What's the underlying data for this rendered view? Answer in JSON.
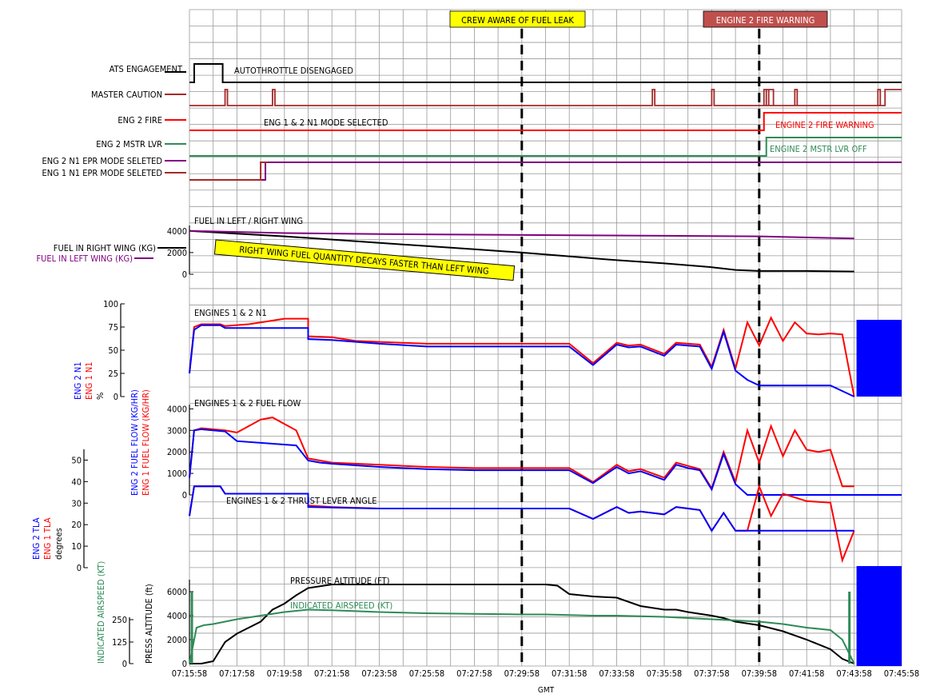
{
  "chart_data": {
    "type": "line",
    "xlabel": "GMT",
    "x_ticks": [
      "07:15:58",
      "07:17:58",
      "07:19:58",
      "07:21:58",
      "07:23:58",
      "07:25:58",
      "07:27:58",
      "07:29:58",
      "07:31:58",
      "07:33:58",
      "07:35:58",
      "07:37:58",
      "07:39:58",
      "07:41:58",
      "07:43:58",
      "07:45:58"
    ],
    "events": [
      {
        "time": "07:29:58",
        "label": "CREW AWARE OF FUEL LEAK",
        "label_color": "#ffff00",
        "text_color": "#000000"
      },
      {
        "time": "07:39:58",
        "label": "ENGINE 2 FIRE WARNING",
        "label_color": "#c0504d",
        "text_color": "#ffffff"
      }
    ],
    "discretes": {
      "labels": [
        {
          "name": "ATS ENGAGEMENT",
          "color": "#000000"
        },
        {
          "name": "MASTER CAUTION",
          "color": "#a52a2a"
        },
        {
          "name": "ENG 2 FIRE",
          "color": "#ff0000"
        },
        {
          "name": "ENG 2 MSTR LVR",
          "color": "#2e8b57"
        },
        {
          "name": "ENG 2 N1 EPR MODE SELETED",
          "color": "#800080"
        },
        {
          "name": "ENG 1 N1 EPR MODE SELETED",
          "color": "#a52a2a"
        }
      ],
      "annotations": {
        "ats": "AUTOTHROTTLE DISENGAGED",
        "n1mode": "ENG 1 & 2 N1 MODE SELECTED",
        "fire": "ENGINE 2 FIRE WARNING",
        "mstr": "ENGINE 2 MSTR LVR OFF"
      }
    },
    "fuel_wing": {
      "title": "FUEL IN LEFT / RIGHT WING",
      "yticks": [
        0,
        2000,
        4000
      ],
      "ylim": [
        0,
        4500
      ],
      "annotation": "RIGHT WING FUEL QUANTITY DECAYS FASTER THAN LEFT WING",
      "series": [
        {
          "name": "FUEL IN RIGHT WING (KG)",
          "color": "#000000",
          "t": [
            0,
            2,
            4,
            6,
            8,
            10,
            12,
            14,
            16,
            18,
            20,
            22,
            23,
            24,
            26,
            28
          ],
          "v": [
            4000,
            3750,
            3500,
            3200,
            2900,
            2600,
            2300,
            2000,
            1650,
            1300,
            1000,
            650,
            400,
            300,
            300,
            250
          ]
        },
        {
          "name": "FUEL IN LEFT WING (KG)",
          "color": "#800080",
          "t": [
            0,
            4,
            8,
            12,
            16,
            20,
            24,
            28
          ],
          "v": [
            4000,
            3800,
            3700,
            3650,
            3600,
            3550,
            3500,
            3300
          ]
        }
      ]
    },
    "n1": {
      "title": "ENGINES 1 & 2 N1",
      "unit": "%",
      "axis_names": [
        "ENG 2 N1",
        "ENG 1 N1"
      ],
      "yticks": [
        0,
        25,
        50,
        75,
        100
      ],
      "ylim": [
        0,
        100
      ],
      "series": [
        {
          "name": "ENG 1 N1",
          "color": "#ff0000",
          "t": [
            0,
            0.2,
            0.5,
            1.3,
            1.5,
            2.5,
            3,
            4,
            4.5,
            5,
            5,
            6,
            7,
            8,
            9,
            10,
            11,
            12,
            13,
            14,
            15,
            15.5,
            16,
            17,
            18,
            18.5,
            19,
            20,
            20.5,
            21,
            21.5,
            22,
            22.5,
            23,
            23.5,
            24,
            24.5,
            25,
            25.5,
            26,
            26.5,
            27,
            27.5,
            28
          ],
          "v": [
            25,
            75,
            78,
            78,
            76,
            78,
            80,
            84,
            84,
            84,
            65,
            64,
            60,
            59,
            58,
            57,
            57,
            57,
            57,
            57,
            57,
            57,
            57,
            36,
            58,
            55,
            56,
            46,
            58,
            57,
            56,
            32,
            72,
            30,
            80,
            55,
            85,
            60,
            80,
            68,
            67,
            68,
            67,
            0
          ]
        },
        {
          "name": "ENG 2 N1",
          "color": "#0000ff",
          "t": [
            0,
            0.2,
            0.5,
            1.3,
            1.5,
            2.5,
            4,
            5,
            5,
            6,
            8,
            10,
            12,
            14,
            15.5,
            16,
            17,
            18,
            18.5,
            19,
            20,
            20.5,
            21,
            21.5,
            22,
            22.5,
            23,
            23.5,
            24,
            26,
            27,
            28
          ],
          "v": [
            25,
            72,
            77,
            77,
            74,
            74,
            74,
            74,
            62,
            61,
            57,
            54,
            54,
            54,
            54,
            54,
            34,
            56,
            53,
            54,
            44,
            56,
            55,
            54,
            30,
            70,
            28,
            18,
            12,
            12,
            12,
            0
          ]
        }
      ]
    },
    "fuel_flow": {
      "title": "ENGINES 1 & 2 FUEL FLOW",
      "axis_names": [
        "ENG 2 FUEL FLOW (KG/HR)",
        "ENG 1 FUEL FLOW (KG/HR)"
      ],
      "yticks": [
        0,
        1000,
        2000,
        3000,
        4000
      ],
      "ylim": [
        0,
        4200
      ],
      "series": [
        {
          "name": "ENG 1 FUEL FLOW",
          "color": "#ff0000",
          "t": [
            0,
            0.2,
            0.5,
            1.5,
            2,
            2.5,
            3,
            3.5,
            4,
            4.5,
            5,
            5.5,
            6,
            8,
            10,
            12,
            14,
            15.5,
            16,
            17,
            18,
            18.5,
            19,
            20,
            20.5,
            21,
            21.5,
            22,
            22.5,
            23,
            23.5,
            24,
            24.5,
            25,
            25.5,
            26,
            26.5,
            27,
            27.5,
            28
          ],
          "v": [
            800,
            3000,
            3100,
            3000,
            2900,
            3200,
            3500,
            3600,
            3300,
            3000,
            1700,
            1600,
            1500,
            1400,
            1300,
            1250,
            1250,
            1250,
            1250,
            600,
            1400,
            1100,
            1200,
            800,
            1500,
            1350,
            1200,
            300,
            2000,
            600,
            3000,
            1500,
            3200,
            1800,
            3000,
            2100,
            2000,
            2100,
            400,
            400
          ]
        },
        {
          "name": "ENG 2 FUEL FLOW",
          "color": "#0000ff",
          "t": [
            0,
            0.2,
            0.5,
            1.5,
            2,
            4.5,
            5,
            5.5,
            6,
            8,
            10,
            12,
            14,
            15.5,
            16,
            17,
            18,
            18.5,
            19,
            20,
            20.5,
            21,
            21.5,
            22,
            22.5,
            23,
            23.5,
            24,
            26,
            28
          ],
          "v": [
            800,
            3000,
            3050,
            2950,
            2500,
            2300,
            1600,
            1500,
            1450,
            1300,
            1200,
            1150,
            1150,
            1150,
            1150,
            550,
            1300,
            1000,
            1100,
            700,
            1400,
            1250,
            1150,
            250,
            1900,
            500,
            0,
            0,
            0,
            0
          ]
        }
      ]
    },
    "tla": {
      "title": "ENGINES 1 & 2 THRUST LEVER ANGLE",
      "unit": "degrees",
      "axis_names": [
        "ENG 2 TLA",
        "ENG 1 TLA"
      ],
      "yticks": [
        0,
        10,
        20,
        30,
        40,
        50
      ],
      "ylim": [
        0,
        55
      ],
      "series": [
        {
          "name": "ENG 1 TLA",
          "color": "#ff0000",
          "t": [
            0,
            0.2,
            0.5,
            1.3,
            1.5,
            3,
            3.5,
            4,
            5,
            5,
            6,
            8,
            10,
            12,
            14,
            15.5,
            16,
            17,
            18,
            18.5,
            19,
            20,
            20.5,
            21,
            21.5,
            22,
            22.5,
            23,
            23.5,
            24,
            24.5,
            25,
            26,
            27,
            27.5,
            28
          ],
          "v": [
            10,
            30,
            30,
            30,
            25,
            25,
            25,
            25,
            25,
            17,
            16,
            15,
            15,
            15,
            15,
            15,
            15,
            8,
            16,
            12,
            13,
            11,
            16,
            15,
            14,
            0,
            12,
            0,
            0,
            30,
            10,
            25,
            20,
            19,
            -20,
            0
          ]
        },
        {
          "name": "ENG 2 TLA",
          "color": "#0000ff",
          "t": [
            0,
            0.2,
            0.5,
            1.3,
            1.5,
            5,
            5,
            8,
            12,
            16,
            17,
            18,
            18.5,
            19,
            20,
            20.5,
            21,
            21.5,
            22,
            22.5,
            23,
            23.5,
            28
          ],
          "v": [
            10,
            30,
            30,
            30,
            25,
            25,
            16,
            15,
            15,
            15,
            8,
            16,
            12,
            13,
            11,
            16,
            15,
            14,
            0,
            12,
            0,
            0,
            0
          ]
        }
      ]
    },
    "altitude": {
      "title": "PRESSURE ALTITUDE (FT)",
      "axis_name": "PRESS ALTITUDE (ft)",
      "yticks": [
        0,
        2000,
        4000,
        6000
      ],
      "ylim": [
        0,
        7000
      ],
      "series": [
        {
          "name": "PRESSURE ALTITUDE (FT)",
          "color": "#000000",
          "t": [
            0,
            0.5,
            1,
            1.5,
            2,
            2.5,
            3,
            3.5,
            4,
            4.5,
            5,
            6,
            8,
            10,
            12,
            14,
            15,
            15.5,
            16,
            17,
            18,
            19,
            20,
            20.5,
            21,
            22,
            22.5,
            23,
            24,
            25,
            26,
            27,
            27.5,
            28
          ],
          "v": [
            0,
            0,
            200,
            1800,
            2500,
            3000,
            3500,
            4500,
            5000,
            5700,
            6300,
            6600,
            6600,
            6600,
            6600,
            6600,
            6600,
            6500,
            5800,
            5600,
            5500,
            4800,
            4500,
            4500,
            4300,
            4000,
            3800,
            3500,
            3200,
            2700,
            2000,
            1200,
            400,
            0
          ]
        }
      ]
    },
    "airspeed": {
      "title": "INDICATED AIRSPEED (KT)",
      "axis_name": "INDICATED AIRSPEED (KT)",
      "yticks": [
        0,
        125,
        250
      ],
      "series": [
        {
          "name": "INDICATED AIRSPEED (KT)",
          "color": "#2e8b57",
          "t": [
            0,
            0.3,
            0.6,
            1,
            1.5,
            2,
            3,
            4,
            4.5,
            5,
            6,
            8,
            10,
            12,
            14,
            15,
            16,
            17,
            18,
            19,
            20,
            20.5,
            21,
            22,
            23,
            24,
            25,
            26,
            27,
            27.5,
            28
          ],
          "v": [
            0,
            3000,
            3200,
            3300,
            3500,
            3700,
            4000,
            4300,
            4400,
            4500,
            4450,
            4300,
            4200,
            4150,
            4100,
            4100,
            4050,
            4000,
            4000,
            3950,
            3900,
            3850,
            3800,
            3700,
            3600,
            3500,
            3300,
            3000,
            2800,
            2000,
            0
          ]
        }
      ]
    }
  }
}
